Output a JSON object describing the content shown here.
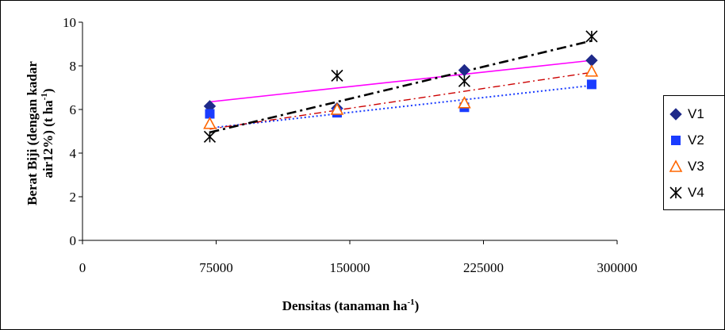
{
  "chart_data": {
    "type": "scatter",
    "xlabel": "Densitas (tanaman ha-1)",
    "xlabel_main": "Densitas (tanaman ha",
    "xlabel_sup": "-1",
    "xlabel_tail": ")",
    "ylabel_line1": "Berat Biji (dengan kadar",
    "ylabel_line2_main": "air12%) (t ha",
    "ylabel_line2_sup": "-1",
    "ylabel_line2_tail": ")",
    "xlim": [
      0,
      300000
    ],
    "ylim": [
      0,
      10
    ],
    "x_ticks": [
      0,
      75000,
      150000,
      225000,
      300000
    ],
    "x_tick_labels": [
      "0",
      "75000",
      "150000",
      "225000",
      "300000"
    ],
    "y_ticks": [
      0,
      2,
      4,
      6,
      8,
      10
    ],
    "y_tick_labels": [
      "0",
      "2",
      "4",
      "6",
      "8",
      "10"
    ],
    "legend_position": "right",
    "series": [
      {
        "name": "V1",
        "marker": "diamond",
        "color": "#1f2a8a",
        "trend_color": "#ff00ff",
        "trend_dash": "solid",
        "x": [
          71428,
          142857,
          214285,
          285714
        ],
        "y": [
          6.15,
          6.05,
          7.8,
          8.25
        ],
        "trend": [
          [
            71428,
            6.35
          ],
          [
            285714,
            8.25
          ]
        ]
      },
      {
        "name": "V2",
        "marker": "square",
        "color": "#1a3cff",
        "trend_color": "#1a3cff",
        "trend_dash": "dotted",
        "x": [
          71428,
          142857,
          214285,
          285714
        ],
        "y": [
          5.8,
          5.85,
          6.1,
          7.15
        ],
        "trend": [
          [
            71428,
            5.15
          ],
          [
            285714,
            7.1
          ]
        ]
      },
      {
        "name": "V3",
        "marker": "triangle",
        "color": "#ff6600",
        "trend_color": "#cc0000",
        "trend_dash": "dashdot",
        "x": [
          71428,
          142857,
          214285,
          285714
        ],
        "y": [
          5.35,
          6.0,
          6.3,
          7.75
        ],
        "trend": [
          [
            71428,
            5.1
          ],
          [
            285714,
            7.7
          ]
        ]
      },
      {
        "name": "V4",
        "marker": "asterisk",
        "color": "#000000",
        "trend_color": "#000000",
        "trend_dash": "dashdotbold",
        "x": [
          71428,
          142857,
          214285,
          285714
        ],
        "y": [
          4.75,
          7.55,
          7.3,
          9.35
        ],
        "trend": [
          [
            71428,
            4.95
          ],
          [
            285714,
            9.15
          ]
        ]
      }
    ]
  }
}
